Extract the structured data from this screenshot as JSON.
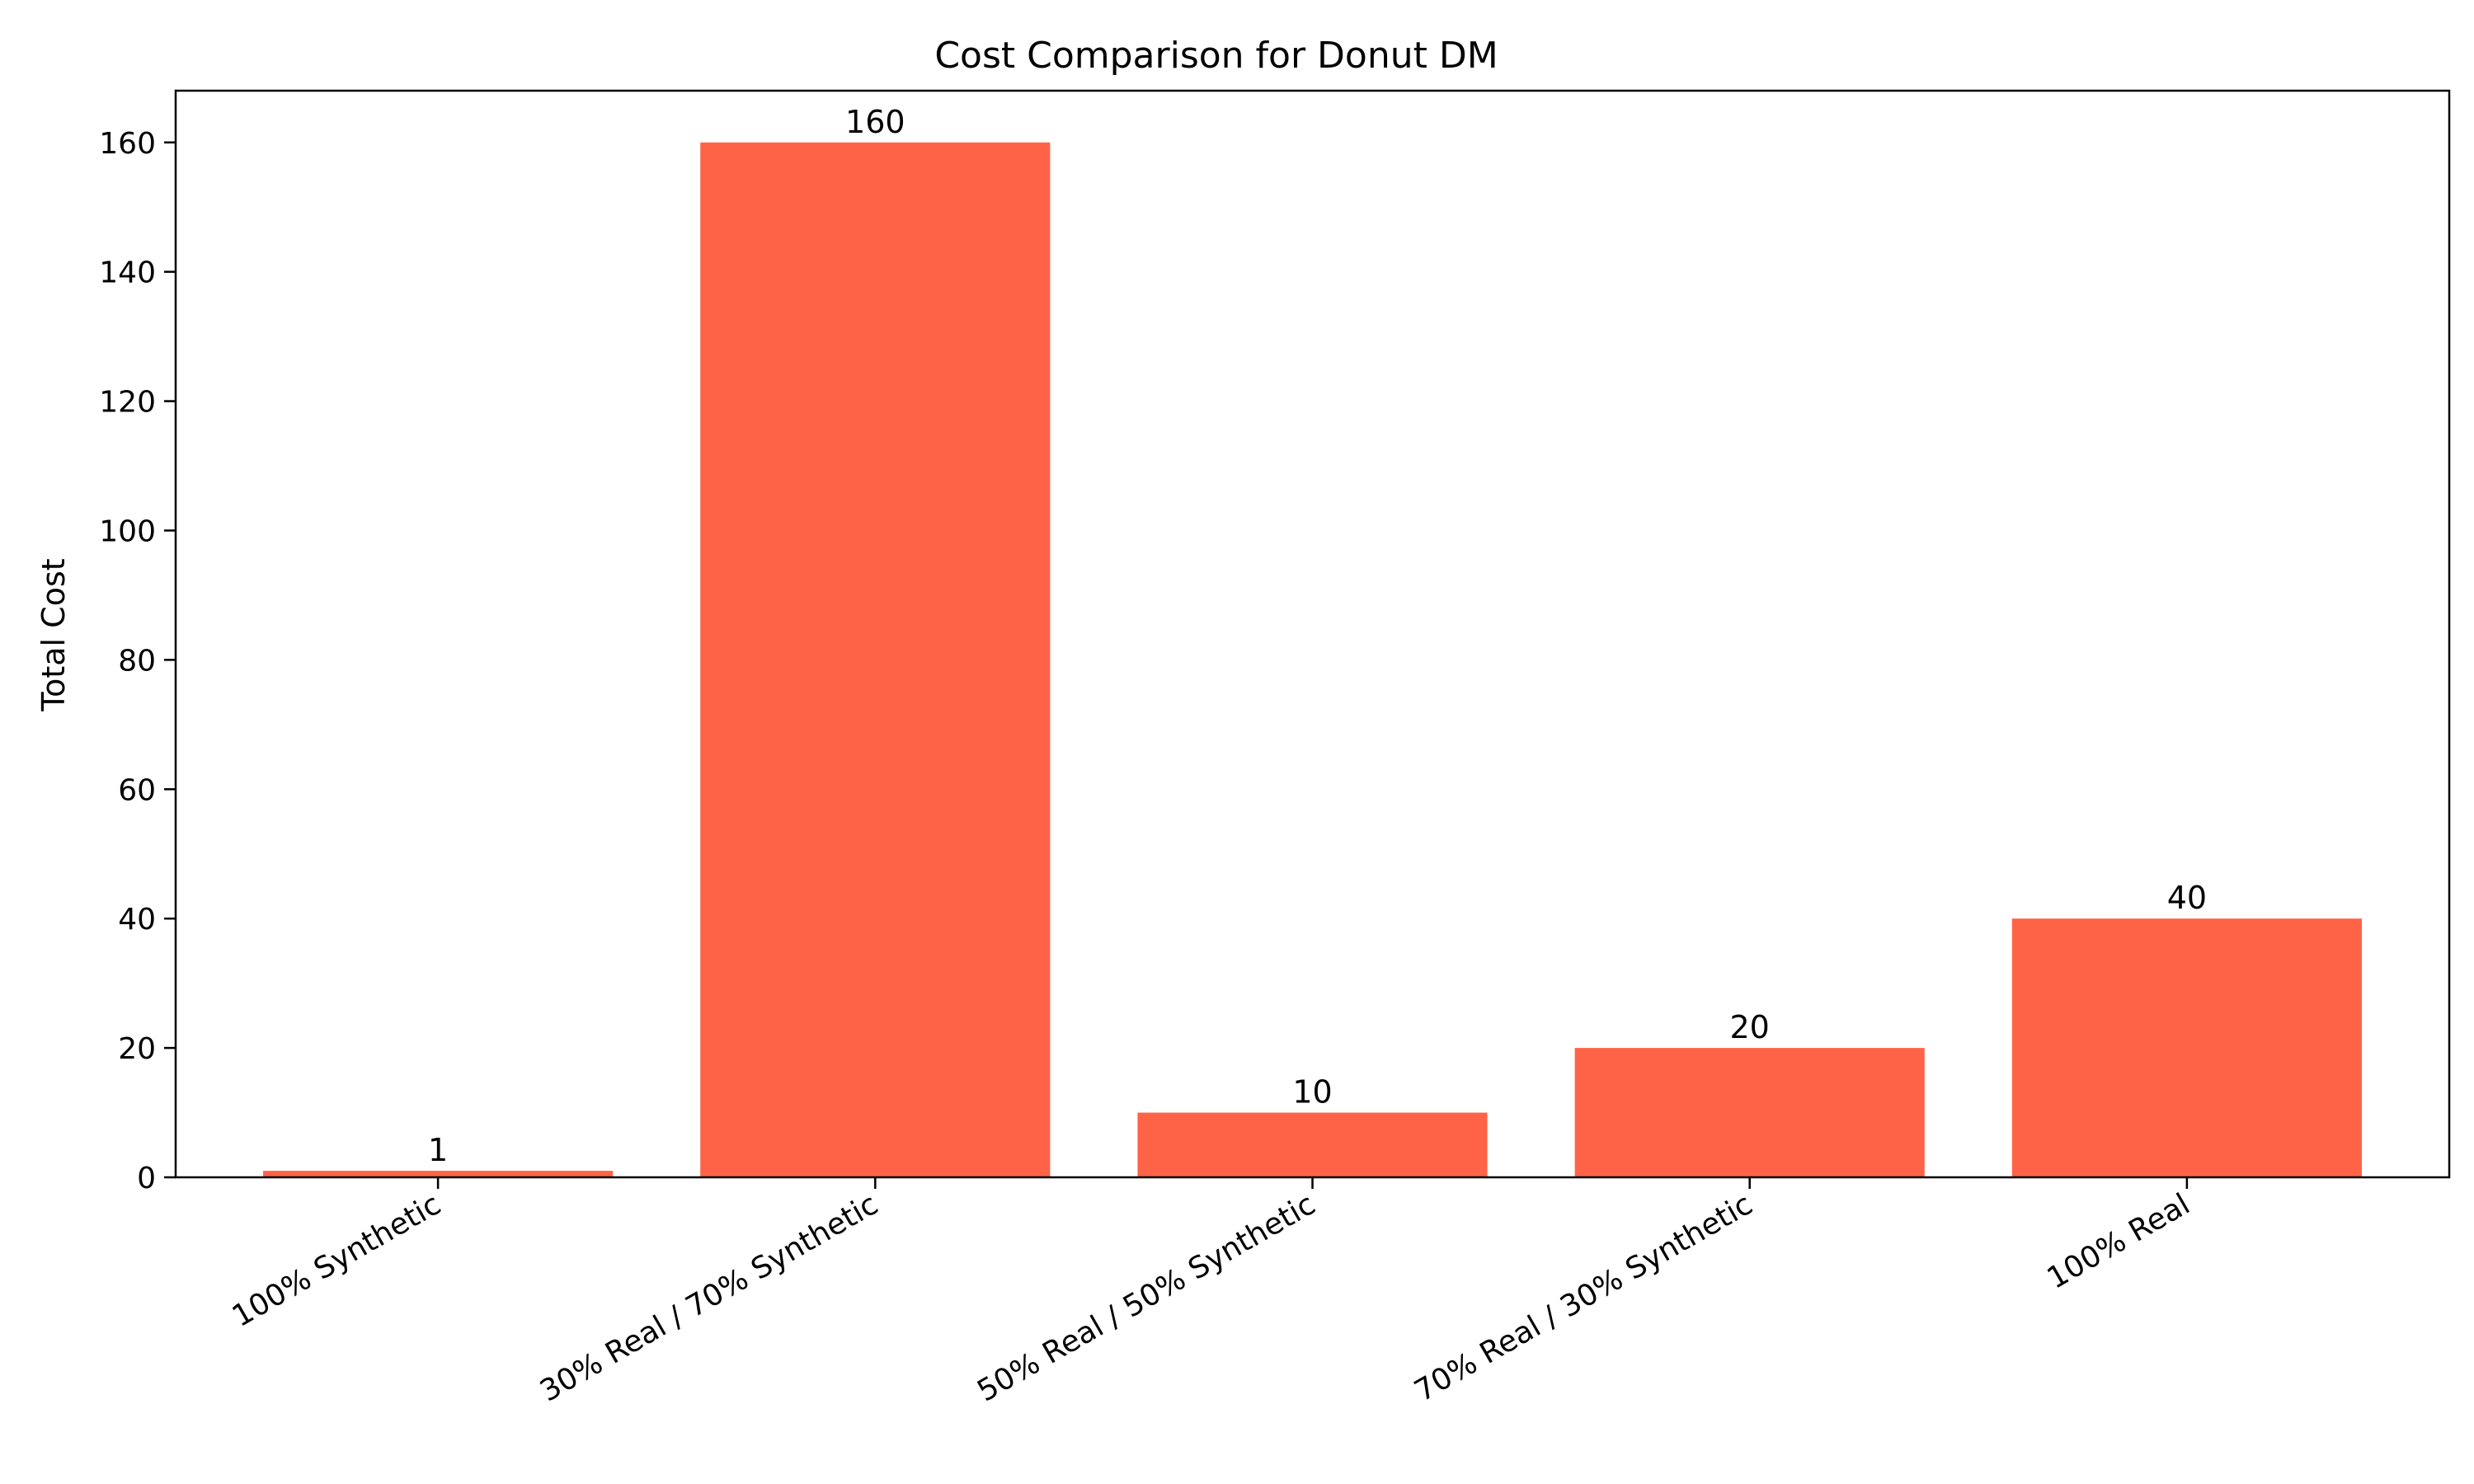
{
  "chart_data": {
    "type": "bar",
    "title": "Cost Comparison for Donut DM",
    "xlabel": "",
    "ylabel": "Total Cost",
    "categories": [
      "100% Synthetic",
      "30% Real / 70% Synthetic",
      "50% Real / 50% Synthetic",
      "70% Real / 30% Synthetic",
      "100% Real"
    ],
    "values": [
      1,
      160,
      10,
      20,
      40
    ],
    "data_labels": [
      "1",
      "160",
      "10",
      "20",
      "40"
    ],
    "yticks": [
      0,
      20,
      40,
      60,
      80,
      100,
      120,
      140,
      160
    ],
    "ylim": [
      0,
      168
    ],
    "grid": false,
    "legend": "none",
    "bar_color": "#ff6347",
    "axis_color": "#000000",
    "x_tick_rotation_deg": 30
  }
}
